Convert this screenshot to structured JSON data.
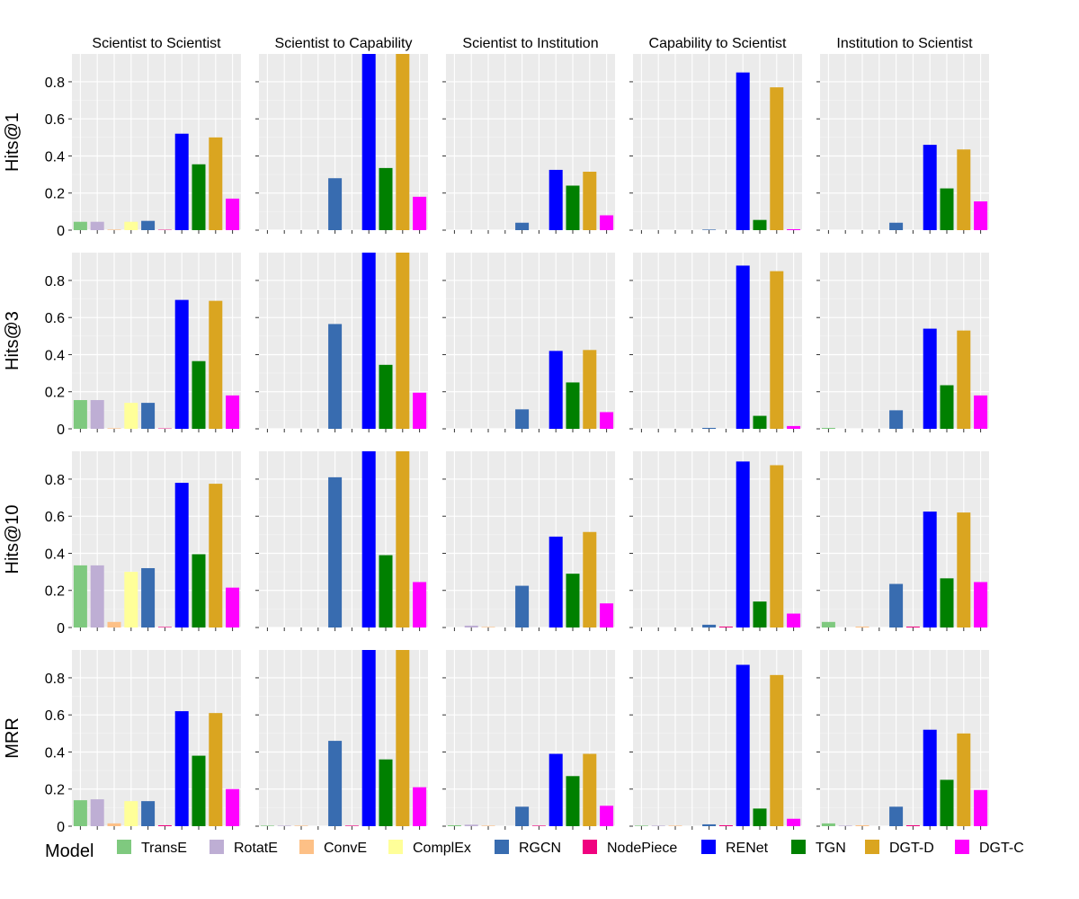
{
  "chart_data": {
    "type": "bar",
    "layout": "facet-grid",
    "columns": [
      "Scientist to Scientist",
      "Scientist to Capability",
      "Scientist to Institution",
      "Capability to Scientist",
      "Institution to Scientist"
    ],
    "rows": [
      "Hits@1",
      "Hits@3",
      "Hits@10",
      "MRR"
    ],
    "y_ticks": [
      0,
      0.2,
      0.4,
      0.6,
      0.8
    ],
    "y_tick_labels": [
      "0",
      "0.2",
      "0.4",
      "0.6",
      "0.8"
    ],
    "ylim": [
      0,
      0.95
    ],
    "grid": true,
    "legend_title": "Model",
    "legend_position": "bottom",
    "models": [
      {
        "name": "TransE",
        "color": "#7fc97f"
      },
      {
        "name": "RotatE",
        "color": "#beaed4"
      },
      {
        "name": "ConvE",
        "color": "#fdc086"
      },
      {
        "name": "ComplEx",
        "color": "#ffff99"
      },
      {
        "name": "RGCN",
        "color": "#386cb0"
      },
      {
        "name": "NodePiece",
        "color": "#f0027f"
      },
      {
        "name": "RENet",
        "color": "#0000ff"
      },
      {
        "name": "TGN",
        "color": "#008000"
      },
      {
        "name": "DGT-D",
        "color": "#daa520"
      },
      {
        "name": "DGT-C",
        "color": "#ff00ff"
      }
    ],
    "values": [
      [
        [
          0.045,
          0.045,
          0.003,
          0.045,
          0.05,
          0.002,
          0.52,
          0.355,
          0.5,
          0.17
        ],
        [
          0.0,
          0.0,
          0.0,
          0.0,
          0.28,
          0.0,
          0.95,
          0.335,
          0.95,
          0.18
        ],
        [
          0.0,
          0.0,
          0.0,
          0.0,
          0.04,
          0.0,
          0.325,
          0.24,
          0.315,
          0.08
        ],
        [
          0.0,
          0.0,
          0.0,
          0.0,
          0.003,
          0.0,
          0.85,
          0.055,
          0.77,
          0.005
        ],
        [
          0.0,
          0.0,
          0.0,
          0.0,
          0.04,
          0.0,
          0.46,
          0.225,
          0.435,
          0.155
        ]
      ],
      [
        [
          0.155,
          0.155,
          0.003,
          0.14,
          0.14,
          0.002,
          0.695,
          0.365,
          0.69,
          0.18
        ],
        [
          0.0,
          0.0,
          0.0,
          0.0,
          0.565,
          0.0,
          0.95,
          0.345,
          0.95,
          0.195
        ],
        [
          0.0,
          0.0,
          0.0,
          0.0,
          0.105,
          0.0,
          0.42,
          0.25,
          0.425,
          0.09
        ],
        [
          0.0,
          0.0,
          0.0,
          0.0,
          0.005,
          0.0,
          0.88,
          0.07,
          0.85,
          0.015
        ],
        [
          0.005,
          0.0,
          0.0,
          0.0,
          0.1,
          0.0,
          0.54,
          0.235,
          0.53,
          0.18
        ]
      ],
      [
        [
          0.335,
          0.335,
          0.03,
          0.3,
          0.32,
          0.003,
          0.78,
          0.395,
          0.775,
          0.215
        ],
        [
          0.0,
          0.0,
          0.0,
          0.0,
          0.81,
          0.0,
          0.95,
          0.39,
          0.95,
          0.245
        ],
        [
          0.0,
          0.01,
          0.003,
          0.0,
          0.225,
          0.0,
          0.49,
          0.29,
          0.515,
          0.13
        ],
        [
          0.0,
          0.0,
          0.0,
          0.0,
          0.015,
          0.005,
          0.895,
          0.14,
          0.875,
          0.075
        ],
        [
          0.03,
          0.0,
          0.005,
          0.0,
          0.235,
          0.005,
          0.625,
          0.265,
          0.62,
          0.245
        ]
      ],
      [
        [
          0.14,
          0.145,
          0.015,
          0.135,
          0.135,
          0.005,
          0.62,
          0.38,
          0.61,
          0.2
        ],
        [
          0.003,
          0.003,
          0.003,
          0.0,
          0.46,
          0.003,
          0.95,
          0.36,
          0.95,
          0.21
        ],
        [
          0.005,
          0.008,
          0.003,
          0.0,
          0.105,
          0.003,
          0.39,
          0.27,
          0.39,
          0.11
        ],
        [
          0.003,
          0.003,
          0.003,
          0.0,
          0.01,
          0.005,
          0.87,
          0.095,
          0.815,
          0.04
        ],
        [
          0.015,
          0.003,
          0.005,
          0.0,
          0.105,
          0.005,
          0.52,
          0.25,
          0.5,
          0.195
        ]
      ]
    ]
  }
}
